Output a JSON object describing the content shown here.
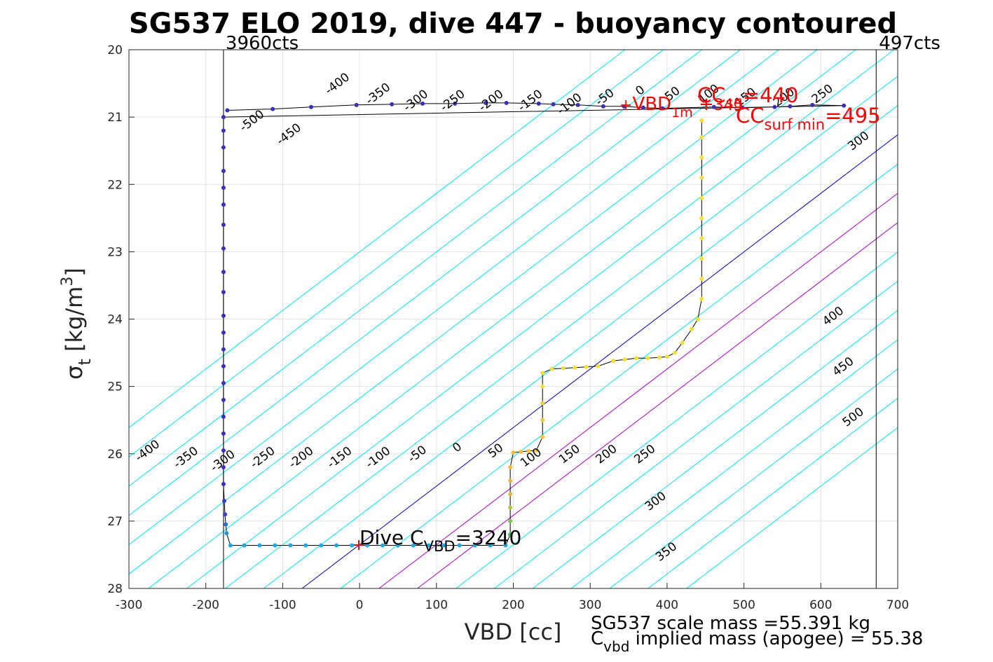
{
  "chart_data": {
    "type": "scatter",
    "title": "SG537 ELO 2019, dive 447 - buoyancy contoured",
    "xlabel": "VBD [cc]",
    "ylabel_main": "σ",
    "ylabel_sub": "t",
    "ylabel_unit": "[kg/m",
    "ylabel_unit_sup": "3",
    "ylabel_unit_close": "]",
    "xlim": [
      -300,
      700
    ],
    "ylim": [
      20,
      28
    ],
    "y_reversed": true,
    "grid": true,
    "xticks": [
      "-300",
      "-200",
      "-100",
      "0",
      "100",
      "200",
      "300",
      "400",
      "500",
      "600",
      "700"
    ],
    "yticks": [
      "20",
      "21",
      "22",
      "23",
      "24",
      "25",
      "26",
      "27",
      "28"
    ],
    "vlines": [
      {
        "x": -177,
        "label": "3960cts"
      },
      {
        "x": 672,
        "label": "497cts"
      }
    ],
    "contours": {
      "slope_cc_per_sigma": 115,
      "reference_sigma": 27.35,
      "levels": [
        -500,
        -450,
        -400,
        -350,
        -300,
        -250,
        -200,
        -150,
        -100,
        -50,
        0,
        50,
        100,
        150,
        200,
        250,
        300,
        350,
        400,
        450,
        500
      ],
      "colors": {
        "default": "#00e5ee",
        "zero": "#0000cc",
        "trim": "#aa00cc"
      },
      "trim_levels": [
        100,
        150
      ],
      "bottom_labels": [
        {
          "text": "-400",
          "vbd": -273,
          "sigma": 26.0
        },
        {
          "text": "-350",
          "vbd": -223,
          "sigma": 26.1
        },
        {
          "text": "-300",
          "vbd": -175,
          "sigma": 26.15
        },
        {
          "text": "-250",
          "vbd": -123,
          "sigma": 26.1
        },
        {
          "text": "-200",
          "vbd": -73,
          "sigma": 26.1
        },
        {
          "text": "-150",
          "vbd": -23,
          "sigma": 26.1
        },
        {
          "text": "-100",
          "vbd": 27,
          "sigma": 26.1
        },
        {
          "text": "-50",
          "vbd": 78,
          "sigma": 26.05
        },
        {
          "text": "0",
          "vbd": 130,
          "sigma": 25.95
        },
        {
          "text": "50",
          "vbd": 180,
          "sigma": 26.0
        },
        {
          "text": "100",
          "vbd": 226,
          "sigma": 26.1
        },
        {
          "text": "150",
          "vbd": 276,
          "sigma": 26.05
        },
        {
          "text": "200",
          "vbd": 324,
          "sigma": 26.05
        },
        {
          "text": "250",
          "vbd": 374,
          "sigma": 26.05
        },
        {
          "text": "300",
          "vbd": 388,
          "sigma": 26.75
        },
        {
          "text": "350",
          "vbd": 402,
          "sigma": 27.5
        },
        {
          "text": "400",
          "vbd": 619,
          "sigma": 24.0
        },
        {
          "text": "450",
          "vbd": 632,
          "sigma": 24.75
        },
        {
          "text": "500",
          "vbd": 645,
          "sigma": 25.5
        }
      ],
      "top_labels": [
        {
          "text": "-500",
          "vbd": -137,
          "sigma": 21.1
        },
        {
          "text": "-450",
          "vbd": -89,
          "sigma": 21.3
        },
        {
          "text": "-400",
          "vbd": -26,
          "sigma": 20.55
        },
        {
          "text": "-350",
          "vbd": 27,
          "sigma": 20.7
        },
        {
          "text": "-300",
          "vbd": 76,
          "sigma": 20.8
        },
        {
          "text": "-250",
          "vbd": 124,
          "sigma": 20.8
        },
        {
          "text": "-200",
          "vbd": 174,
          "sigma": 20.8
        },
        {
          "text": "-150",
          "vbd": 225,
          "sigma": 20.8
        },
        {
          "text": "-100",
          "vbd": 276,
          "sigma": 20.85
        },
        {
          "text": "-50",
          "vbd": 322,
          "sigma": 20.75
        },
        {
          "text": "0",
          "vbd": 368,
          "sigma": 20.65
        },
        {
          "text": "50",
          "vbd": 410,
          "sigma": 20.7
        },
        {
          "text": "100",
          "vbd": 457,
          "sigma": 20.7
        },
        {
          "text": "150",
          "vbd": 505,
          "sigma": 20.75
        },
        {
          "text": "200",
          "vbd": 555,
          "sigma": 20.75
        },
        {
          "text": "250",
          "vbd": 605,
          "sigma": 20.7
        },
        {
          "text": "300",
          "vbd": 652,
          "sigma": 21.4
        }
      ]
    },
    "series": [
      {
        "points": [
          {
            "x": -172,
            "y": 20.9,
            "c": "#3d2fb5"
          },
          {
            "x": -113,
            "y": 20.88,
            "c": "#3d2fb5"
          },
          {
            "x": -63,
            "y": 20.85,
            "c": "#3d2fb5"
          },
          {
            "x": -4,
            "y": 20.82,
            "c": "#3d2fb5"
          },
          {
            "x": 42,
            "y": 20.81,
            "c": "#3d2fb5"
          },
          {
            "x": 82,
            "y": 20.8,
            "c": "#3d2fb5"
          },
          {
            "x": 124,
            "y": 20.8,
            "c": "#3d2fb5"
          },
          {
            "x": 164,
            "y": 20.79,
            "c": "#3d2fb5"
          },
          {
            "x": 191,
            "y": 20.79,
            "c": "#3d2fb5"
          },
          {
            "x": 233,
            "y": 20.8,
            "c": "#3d2fb5"
          },
          {
            "x": 252,
            "y": 20.81,
            "c": "#3d2fb5"
          },
          {
            "x": 284,
            "y": 20.82,
            "c": "#3d2fb5"
          },
          {
            "x": 317,
            "y": 20.84,
            "c": "#3d2fb5"
          },
          {
            "x": 344,
            "y": 20.84,
            "c": "#3d2fb5"
          },
          {
            "x": 369,
            "y": 20.86,
            "c": "#3d2fb5"
          },
          {
            "x": 394,
            "y": 20.87,
            "c": "#3d2fb5"
          },
          {
            "x": 461,
            "y": 20.85,
            "c": "#3d2fb5"
          },
          {
            "x": 498,
            "y": 20.86,
            "c": "#3d2fb5"
          },
          {
            "x": 540,
            "y": 20.85,
            "c": "#3d2fb5"
          },
          {
            "x": 560,
            "y": 20.84,
            "c": "#3d2fb5"
          },
          {
            "x": 589,
            "y": 20.82,
            "c": "#3d2fb5"
          },
          {
            "x": 630,
            "y": 20.83,
            "c": "#3d2fb5"
          },
          {
            "x": -177,
            "y": 21.0,
            "c": "#3d2fb5"
          },
          {
            "x": -177,
            "y": 21.2,
            "c": "#3d2fb5"
          },
          {
            "x": -177,
            "y": 21.45,
            "c": "#3d2fb5"
          },
          {
            "x": -177,
            "y": 21.8,
            "c": "#3d2fb5"
          },
          {
            "x": -177,
            "y": 22.05,
            "c": "#3d2fb5"
          },
          {
            "x": -177,
            "y": 22.3,
            "c": "#3d2fb5"
          },
          {
            "x": -177,
            "y": 22.6,
            "c": "#3d2fb5"
          },
          {
            "x": -177,
            "y": 22.95,
            "c": "#3d2fb5"
          },
          {
            "x": -177,
            "y": 23.3,
            "c": "#3d2fb5"
          },
          {
            "x": -177,
            "y": 23.6,
            "c": "#3d2fb5"
          },
          {
            "x": -177,
            "y": 23.95,
            "c": "#3d2fb5"
          },
          {
            "x": -177,
            "y": 24.2,
            "c": "#3d2fb5"
          },
          {
            "x": -177,
            "y": 24.45,
            "c": "#3d2fb5"
          },
          {
            "x": -177,
            "y": 24.7,
            "c": "#3d2fb5"
          },
          {
            "x": -177,
            "y": 24.95,
            "c": "#3d2fb5"
          },
          {
            "x": -177,
            "y": 25.2,
            "c": "#3d2fb5"
          },
          {
            "x": -177,
            "y": 25.45,
            "c": "#3d2fb5"
          },
          {
            "x": -177,
            "y": 25.7,
            "c": "#3d2fb5"
          },
          {
            "x": -177,
            "y": 25.95,
            "c": "#3d2fb5"
          },
          {
            "x": -177,
            "y": 26.2,
            "c": "#3d2fb5"
          },
          {
            "x": -177,
            "y": 26.45,
            "c": "#3d2fb5"
          },
          {
            "x": -176,
            "y": 26.7,
            "c": "#3d3fcc"
          },
          {
            "x": -175,
            "y": 26.9,
            "c": "#3d3fcc"
          },
          {
            "x": -174,
            "y": 27.05,
            "c": "#2f6fd8"
          },
          {
            "x": -173,
            "y": 27.18,
            "c": "#2a8fe0"
          },
          {
            "x": -168,
            "y": 27.36,
            "c": "#22a8e0"
          },
          {
            "x": -150,
            "y": 27.36,
            "c": "#22a8e0"
          },
          {
            "x": -130,
            "y": 27.36,
            "c": "#22a8e0"
          },
          {
            "x": -110,
            "y": 27.36,
            "c": "#22a8e0"
          },
          {
            "x": -90,
            "y": 27.36,
            "c": "#22a8e0"
          },
          {
            "x": -70,
            "y": 27.36,
            "c": "#22a8e0"
          },
          {
            "x": -50,
            "y": 27.36,
            "c": "#22a8e0"
          },
          {
            "x": -30,
            "y": 27.36,
            "c": "#22a8e0"
          },
          {
            "x": -10,
            "y": 27.36,
            "c": "#22a8e0"
          },
          {
            "x": 10,
            "y": 27.36,
            "c": "#22a8e0"
          },
          {
            "x": 30,
            "y": 27.36,
            "c": "#22a8e0"
          },
          {
            "x": 50,
            "y": 27.36,
            "c": "#22a8e0"
          },
          {
            "x": 70,
            "y": 27.36,
            "c": "#22a8e0"
          },
          {
            "x": 90,
            "y": 27.36,
            "c": "#22a8e0"
          },
          {
            "x": 110,
            "y": 27.36,
            "c": "#22a8e0"
          },
          {
            "x": 130,
            "y": 27.36,
            "c": "#22a8e0"
          },
          {
            "x": 150,
            "y": 27.36,
            "c": "#22a8e0"
          },
          {
            "x": 170,
            "y": 27.36,
            "c": "#22a8e0"
          },
          {
            "x": 190,
            "y": 27.36,
            "c": "#22a8e0"
          },
          {
            "x": 196,
            "y": 27.2,
            "c": "#3cb84e"
          },
          {
            "x": 196,
            "y": 27.0,
            "c": "#7fc44a"
          },
          {
            "x": 196,
            "y": 26.8,
            "c": "#b4c846"
          },
          {
            "x": 196,
            "y": 26.6,
            "c": "#e0b840"
          },
          {
            "x": 196,
            "y": 26.4,
            "c": "#f2b440"
          },
          {
            "x": 196,
            "y": 26.2,
            "c": "#f6b83c"
          },
          {
            "x": 200,
            "y": 25.98,
            "c": "#f7c23a"
          },
          {
            "x": 210,
            "y": 25.97,
            "c": "#f7c23a"
          },
          {
            "x": 220,
            "y": 25.96,
            "c": "#f7c23a"
          },
          {
            "x": 230,
            "y": 25.95,
            "c": "#f7c23a"
          },
          {
            "x": 238,
            "y": 25.75,
            "c": "#f4c63a"
          },
          {
            "x": 238,
            "y": 25.5,
            "c": "#f2cb3a"
          },
          {
            "x": 238,
            "y": 25.25,
            "c": "#f2d03a"
          },
          {
            "x": 238,
            "y": 25.0,
            "c": "#f4dc3a"
          },
          {
            "x": 238,
            "y": 24.8,
            "c": "#f4dc3a"
          },
          {
            "x": 250,
            "y": 24.74,
            "c": "#f4e03a"
          },
          {
            "x": 265,
            "y": 24.73,
            "c": "#f4e03a"
          },
          {
            "x": 280,
            "y": 24.72,
            "c": "#f4e03a"
          },
          {
            "x": 295,
            "y": 24.71,
            "c": "#f4e03a"
          },
          {
            "x": 310,
            "y": 24.7,
            "c": "#f4e03a"
          },
          {
            "x": 330,
            "y": 24.62,
            "c": "#f4e03a"
          },
          {
            "x": 345,
            "y": 24.6,
            "c": "#f4e03a"
          },
          {
            "x": 360,
            "y": 24.58,
            "c": "#f4e03a"
          },
          {
            "x": 375,
            "y": 24.58,
            "c": "#f4e03a"
          },
          {
            "x": 390,
            "y": 24.57,
            "c": "#f4e03a"
          },
          {
            "x": 400,
            "y": 24.56,
            "c": "#f4e03a"
          },
          {
            "x": 410,
            "y": 24.5,
            "c": "#f4e03a"
          },
          {
            "x": 420,
            "y": 24.35,
            "c": "#f4e03a"
          },
          {
            "x": 432,
            "y": 24.15,
            "c": "#f4e03a"
          },
          {
            "x": 440,
            "y": 24.0,
            "c": "#f4e03a"
          },
          {
            "x": 445,
            "y": 23.7,
            "c": "#f4e03a"
          },
          {
            "x": 445,
            "y": 23.4,
            "c": "#f4e03a"
          },
          {
            "x": 445,
            "y": 23.1,
            "c": "#f4e03a"
          },
          {
            "x": 445,
            "y": 22.8,
            "c": "#f4e03a"
          },
          {
            "x": 445,
            "y": 22.5,
            "c": "#f4e03a"
          },
          {
            "x": 445,
            "y": 22.2,
            "c": "#f4e03a"
          },
          {
            "x": 445,
            "y": 21.9,
            "c": "#f4e03a"
          },
          {
            "x": 445,
            "y": 21.6,
            "c": "#f4e03a"
          },
          {
            "x": 445,
            "y": 21.3,
            "c": "#f4e03a"
          },
          {
            "x": 445,
            "y": 21.05,
            "c": "#f4e03a"
          }
        ]
      }
    ],
    "annotations": {
      "vbd1m": {
        "sym": "+",
        "main": "VBD",
        "sub": "1m",
        "mid": " +",
        "tail": "345"
      },
      "cc": {
        "main": "CC",
        "sub": "sg",
        "tail": "=440"
      },
      "ccsurf": {
        "main": "CC",
        "sub": "surf min",
        "tail": "=495"
      },
      "dive": {
        "main": "Dive C",
        "sub": "VBD",
        "tail": "=3240"
      },
      "footer_line1": "SG537 scale mass =55.391 kg",
      "footer_c": "C",
      "footer_sub": "vbd",
      "footer_tail": " implied mass (apogee) = 55.38"
    }
  }
}
